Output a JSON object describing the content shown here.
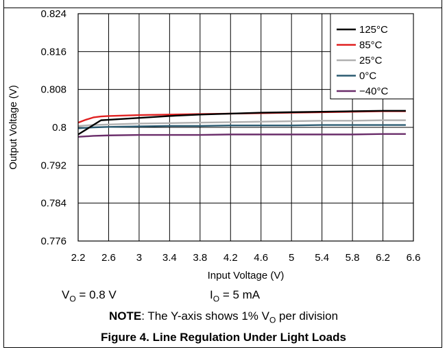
{
  "chart_data": {
    "type": "line",
    "title": "",
    "xlabel": "Input Voltage (V)",
    "ylabel": "Output Voltage (V)",
    "xlim": [
      2.2,
      6.6
    ],
    "ylim": [
      0.776,
      0.824
    ],
    "xticks": [
      2.2,
      2.6,
      3,
      3.4,
      3.8,
      4.2,
      4.6,
      5,
      5.4,
      5.8,
      6.2,
      6.6
    ],
    "xtick_labels": [
      "2.2",
      "2.6",
      "3",
      "3.4",
      "3.8",
      "4.2",
      "4.6",
      "5",
      "5.4",
      "5.8",
      "6.2",
      "6.6"
    ],
    "yticks": [
      0.776,
      0.784,
      0.792,
      0.8,
      0.808,
      0.816,
      0.824
    ],
    "ytick_labels": [
      "0.776",
      "0.784",
      "0.792",
      "0.8",
      "0.808",
      "0.816",
      "0.824"
    ],
    "grid": true,
    "legend_position": "top-right",
    "series": [
      {
        "name": "125°C",
        "color": "#000000",
        "x": [
          2.2,
          2.3,
          2.4,
          2.5,
          2.6,
          3.0,
          3.4,
          3.8,
          4.2,
          4.6,
          5.0,
          5.4,
          5.8,
          6.2,
          6.5
        ],
        "y": [
          0.7985,
          0.7995,
          0.8005,
          0.8015,
          0.8016,
          0.802,
          0.8024,
          0.8027,
          0.8029,
          0.8031,
          0.8032,
          0.8033,
          0.8034,
          0.8035,
          0.8035
        ]
      },
      {
        "name": "85°C",
        "color": "#e02020",
        "x": [
          2.2,
          2.3,
          2.4,
          2.5,
          2.6,
          3.0,
          3.4,
          3.8,
          4.2,
          4.6,
          5.0,
          5.4,
          5.8,
          6.2,
          6.5
        ],
        "y": [
          0.801,
          0.8016,
          0.8021,
          0.8023,
          0.8024,
          0.8026,
          0.8027,
          0.8028,
          0.8029,
          0.803,
          0.8031,
          0.8032,
          0.8033,
          0.8034,
          0.8034
        ]
      },
      {
        "name": "25°C",
        "color": "#b0b0b0",
        "x": [
          2.2,
          2.4,
          2.6,
          3.0,
          3.4,
          3.8,
          4.2,
          4.6,
          5.0,
          5.4,
          5.8,
          6.2,
          6.5
        ],
        "y": [
          0.8003,
          0.8005,
          0.8006,
          0.8008,
          0.8009,
          0.801,
          0.8011,
          0.8012,
          0.8013,
          0.8014,
          0.8014,
          0.8015,
          0.8015
        ]
      },
      {
        "name": "0°C",
        "color": "#2a5a70",
        "x": [
          2.2,
          2.4,
          2.6,
          3.0,
          3.4,
          3.8,
          4.2,
          4.6,
          5.0,
          5.4,
          5.8,
          6.2,
          6.5
        ],
        "y": [
          0.7998,
          0.8,
          0.8001,
          0.8002,
          0.8003,
          0.8003,
          0.8004,
          0.8004,
          0.8004,
          0.8005,
          0.8005,
          0.8005,
          0.8005
        ]
      },
      {
        "name": "−40°C",
        "color": "#6a2d6a",
        "x": [
          2.2,
          2.4,
          2.6,
          3.0,
          3.4,
          3.8,
          4.2,
          4.6,
          5.0,
          5.4,
          5.8,
          6.2,
          6.5
        ],
        "y": [
          0.798,
          0.7982,
          0.7983,
          0.7984,
          0.7984,
          0.7984,
          0.7985,
          0.7985,
          0.7985,
          0.7985,
          0.7985,
          0.7986,
          0.7986
        ]
      }
    ]
  },
  "conditions": {
    "vo_label": "V",
    "vo_sub": "O",
    "vo_value": "= 0.8 V",
    "io_label": "I",
    "io_sub": "O",
    "io_value": "= 5 mA"
  },
  "note": {
    "bold": "NOTE",
    "text_before": ": The Y-axis shows 1% V",
    "sub": "O",
    "text_after": " per division"
  },
  "caption": "Figure 4. Line Regulation Under Light Loads"
}
